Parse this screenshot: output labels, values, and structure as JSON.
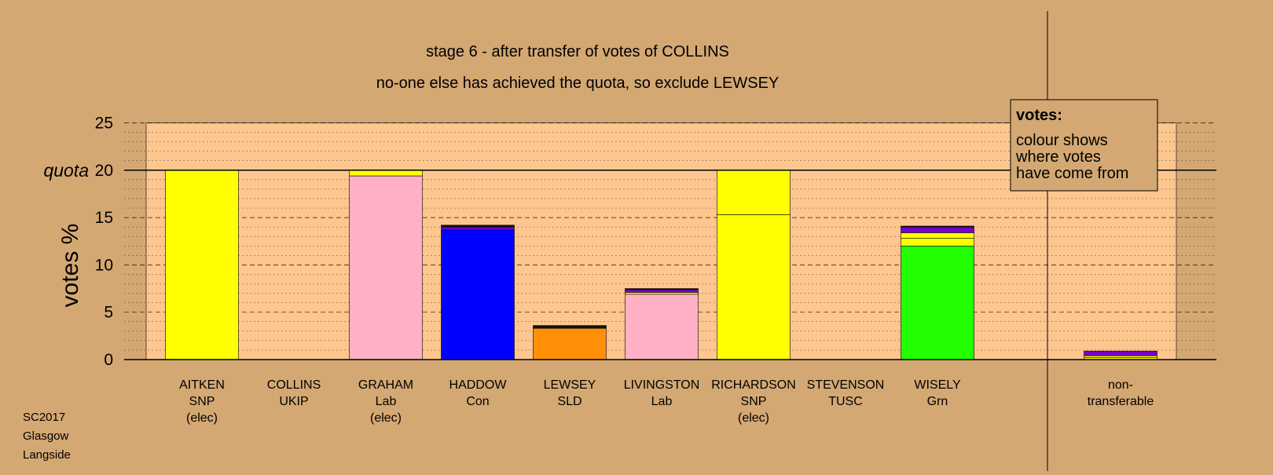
{
  "title": "stage 6 - after transfer of votes of COLLINS",
  "subtitle": "no-one else has achieved the quota, so exclude LEWSEY",
  "quota_label": "quota",
  "legend": {
    "heading": "votes:",
    "lines": [
      "colour shows",
      "where votes",
      "have come from"
    ]
  },
  "footer": [
    "SC2017",
    "Glasgow",
    "Langside"
  ],
  "colors": {
    "background": "#D4A873",
    "plot_area": "#FDC68F",
    "SNP": "#FFFF00",
    "Lab": "#FFB0C4",
    "Con": "#0000FF",
    "SLD": "#FF9008",
    "Grn": "#22FF00",
    "UKIP": "#7700CC",
    "TUSC": "#111111"
  },
  "chart_data": {
    "type": "bar",
    "stacked": true,
    "ylabel": "votes %",
    "ylim": [
      0,
      25
    ],
    "yticks": [
      0,
      5,
      10,
      15,
      20,
      25
    ],
    "quota": 20,
    "grid": true,
    "legend_position": "top-right",
    "categories": [
      {
        "label": [
          "AITKEN",
          "SNP",
          "(elec)"
        ]
      },
      {
        "label": [
          "COLLINS",
          "UKIP"
        ]
      },
      {
        "label": [
          "GRAHAM",
          "Lab",
          "(elec)"
        ]
      },
      {
        "label": [
          "HADDOW",
          "Con"
        ]
      },
      {
        "label": [
          "LEWSEY",
          "SLD"
        ]
      },
      {
        "label": [
          "LIVINGSTON",
          "Lab"
        ]
      },
      {
        "label": [
          "RICHARDSON",
          "SNP",
          "(elec)"
        ]
      },
      {
        "label": [
          "STEVENSON",
          "TUSC"
        ]
      },
      {
        "label": [
          "WISELY",
          "Grn"
        ]
      },
      {
        "label": [
          "non-",
          "transferable"
        ]
      }
    ],
    "stacks": [
      [
        {
          "source": "SNP",
          "value": 20.0
        }
      ],
      [],
      [
        {
          "source": "Lab",
          "value": 19.4
        },
        {
          "source": "SNP",
          "value": 0.6
        }
      ],
      [
        {
          "source": "Con",
          "value": 13.7
        },
        {
          "source": "UKIP",
          "value": 0.3
        },
        {
          "source": "TUSC",
          "value": 0.2
        }
      ],
      [
        {
          "source": "SLD",
          "value": 3.3
        },
        {
          "source": "TUSC",
          "value": 0.3
        }
      ],
      [
        {
          "source": "Lab",
          "value": 6.9
        },
        {
          "source": "SNP",
          "value": 0.2
        },
        {
          "source": "UKIP",
          "value": 0.3
        },
        {
          "source": "TUSC",
          "value": 0.1
        }
      ],
      [
        {
          "source": "SNP",
          "value": 15.3
        },
        {
          "source": "SNP",
          "value": 4.7
        }
      ],
      [],
      [
        {
          "source": "Grn",
          "value": 12.0
        },
        {
          "source": "SNP",
          "value": 0.8
        },
        {
          "source": "SNP",
          "value": 0.6
        },
        {
          "source": "UKIP",
          "value": 0.6
        },
        {
          "source": "TUSC",
          "value": 0.1
        }
      ],
      [
        {
          "source": "SNP",
          "value": 0.2
        },
        {
          "source": "SNP",
          "value": 0.2
        },
        {
          "source": "UKIP",
          "value": 0.5
        }
      ]
    ]
  }
}
